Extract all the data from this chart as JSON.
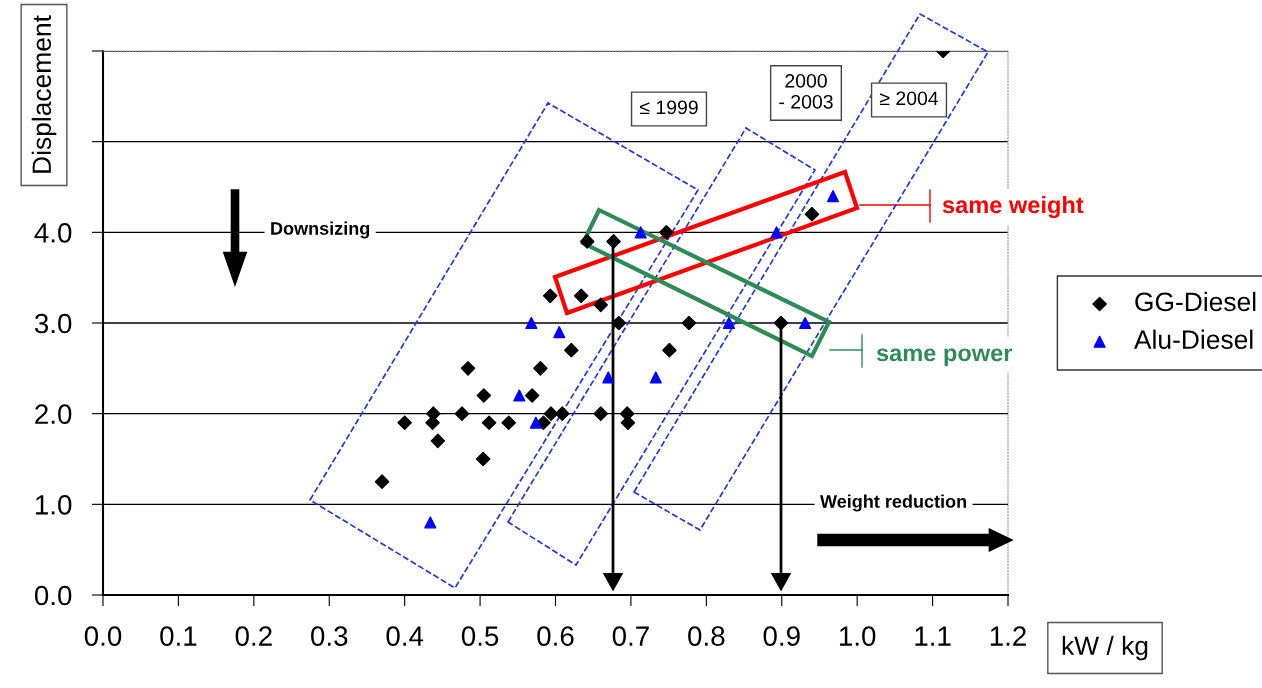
{
  "chart_data": {
    "type": "scatter",
    "xlabel": "kW / kg",
    "ylabel": "Displacement",
    "xlim": [
      0,
      1.2
    ],
    "ylim": [
      0,
      6
    ],
    "xticks": [
      {
        "value": 0,
        "label": "0.0"
      },
      0.1,
      0.2,
      0.3,
      0.4,
      0.5,
      0.6,
      0.7,
      0.8,
      0.9,
      {
        "value": 1,
        "label": "1.0"
      },
      1.1,
      1.2
    ],
    "yticks": [
      {
        "value": 0,
        "label": "0.0"
      },
      {
        "value": 1,
        "label": "1.0"
      },
      {
        "value": 2,
        "label": "2.0"
      },
      {
        "value": 3,
        "label": "3.0"
      },
      {
        "value": 4,
        "label": "4.0"
      },
      {
        "value": 5,
        "label": null
      },
      {
        "value": 6,
        "label": null
      }
    ],
    "grid": "y",
    "legend": "right",
    "series": [
      {
        "name": "GG-Diesel",
        "color": "#000000",
        "marker": "diamond",
        "x": [
          0.37,
          0.4,
          0.437,
          0.438,
          0.444,
          0.476,
          0.484,
          0.504,
          0.505,
          0.512,
          0.538,
          0.569,
          0.58,
          0.584,
          0.594,
          0.609,
          0.621,
          0.593,
          0.634,
          0.66,
          0.642,
          0.677,
          0.684,
          0.66,
          0.695,
          0.696,
          0.747,
          0.751,
          0.777,
          0.899,
          0.94,
          1.114
        ],
        "values": [
          1.25,
          1.9,
          1.9,
          2.0,
          1.7,
          2.0,
          2.5,
          1.5,
          2.2,
          1.9,
          1.9,
          2.2,
          2.5,
          1.9,
          2.0,
          2.0,
          2.7,
          3.3,
          3.3,
          3.2,
          3.9,
          3.9,
          3.0,
          2.0,
          2.0,
          1.9,
          4.0,
          2.7,
          3.0,
          3.0,
          4.2,
          6.0
        ]
      },
      {
        "name": "Alu-Diesel",
        "color": "#0000ff",
        "marker": "triangle",
        "x": [
          0.434,
          0.552,
          0.568,
          0.605,
          0.574,
          0.67,
          0.733,
          0.713,
          0.893,
          0.968,
          0.83,
          0.931
        ],
        "values": [
          0.8,
          2.2,
          3.0,
          2.9,
          1.9,
          2.4,
          2.4,
          4.0,
          4.0,
          4.4,
          3.0,
          3.0
        ]
      }
    ],
    "annotations": [
      "Downsizing",
      "Weight reduction",
      "≤ 1999",
      "2000\n- 2003",
      "≥ 2004",
      "same weight",
      "same power"
    ]
  }
}
